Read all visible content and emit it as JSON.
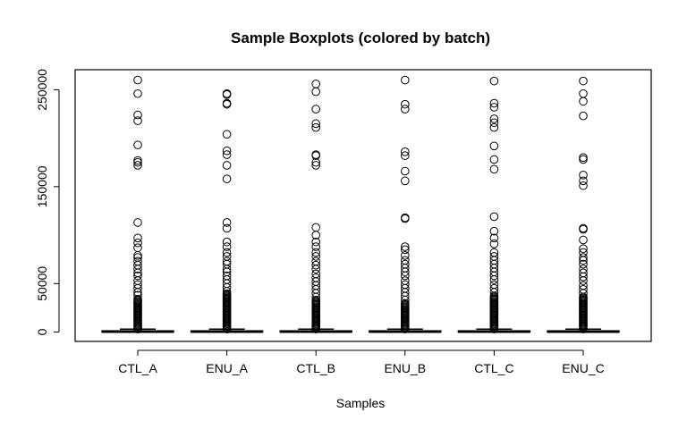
{
  "chart_data": {
    "type": "boxplot",
    "title": "Sample Boxplots (colored by batch)",
    "xlabel": "Samples",
    "ylabel": "",
    "ylim": [
      0,
      260000
    ],
    "yticks": [
      0,
      50000,
      150000,
      250000
    ],
    "ytick_labels": [
      "0",
      "50000",
      "150000",
      "250000"
    ],
    "grid": false,
    "legend": "none",
    "box_color": "#000000",
    "categories": [
      "CTL_A",
      "ENU_A",
      "CTL_B",
      "ENU_B",
      "CTL_C",
      "ENU_C"
    ],
    "series": [
      {
        "category": "CTL_A",
        "whisker_low": 0,
        "q1": 200,
        "median": 500,
        "q3": 1200,
        "whisker_high": 3000,
        "dense_outlier_range": [
          3000,
          35000
        ],
        "outliers": [
          38000,
          41000,
          45000,
          49000,
          53000,
          58000,
          61000,
          65000,
          69000,
          73000,
          77000,
          79000,
          87000,
          92000,
          97000,
          113000,
          172000,
          175000,
          177000,
          193000,
          218000,
          224000,
          246000,
          260000
        ]
      },
      {
        "category": "ENU_A",
        "whisker_low": 0,
        "q1": 200,
        "median": 500,
        "q3": 1200,
        "whisker_high": 3000,
        "dense_outlier_range": [
          3000,
          40000
        ],
        "outliers": [
          42000,
          46000,
          50000,
          54000,
          58000,
          62000,
          65000,
          70000,
          73000,
          78000,
          82000,
          88000,
          93000,
          107000,
          113000,
          158000,
          172000,
          183000,
          187000,
          204000,
          235000,
          236000,
          245000,
          246000
        ]
      },
      {
        "category": "CTL_B",
        "whisker_low": 0,
        "q1": 200,
        "median": 500,
        "q3": 1200,
        "whisker_high": 3000,
        "dense_outlier_range": [
          3000,
          33000
        ],
        "outliers": [
          36000,
          40000,
          44000,
          48000,
          52000,
          56000,
          60000,
          65000,
          69000,
          73000,
          78000,
          82000,
          88000,
          93000,
          100000,
          108000,
          172000,
          175000,
          182000,
          183000,
          211000,
          215000,
          230000,
          248000,
          256000
        ]
      },
      {
        "category": "ENU_B",
        "whisker_low": 0,
        "q1": 200,
        "median": 500,
        "q3": 1200,
        "whisker_high": 3000,
        "dense_outlier_range": [
          3000,
          30000
        ],
        "outliers": [
          33000,
          37000,
          41000,
          45000,
          49000,
          53000,
          58000,
          62000,
          66000,
          70000,
          74000,
          79000,
          85000,
          88000,
          117000,
          118000,
          156000,
          166000,
          182000,
          186000,
          230000,
          235000,
          260000
        ]
      },
      {
        "category": "CTL_C",
        "whisker_low": 0,
        "q1": 200,
        "median": 500,
        "q3": 1200,
        "whisker_high": 3000,
        "dense_outlier_range": [
          3000,
          38000
        ],
        "outliers": [
          41000,
          45000,
          49000,
          54000,
          58000,
          62000,
          66000,
          70000,
          74000,
          78000,
          82000,
          91000,
          97000,
          104000,
          119000,
          168000,
          178000,
          192000,
          211000,
          216000,
          220000,
          232000,
          236000,
          259000
        ]
      },
      {
        "category": "ENU_C",
        "whisker_low": 0,
        "q1": 200,
        "median": 500,
        "q3": 1200,
        "whisker_high": 3000,
        "dense_outlier_range": [
          3000,
          37000
        ],
        "outliers": [
          40000,
          44000,
          48000,
          53000,
          57000,
          61000,
          65000,
          70000,
          74000,
          77000,
          82000,
          86000,
          95000,
          106000,
          107000,
          151000,
          156000,
          162000,
          178000,
          180000,
          223000,
          238000,
          246000,
          259000
        ]
      }
    ]
  }
}
